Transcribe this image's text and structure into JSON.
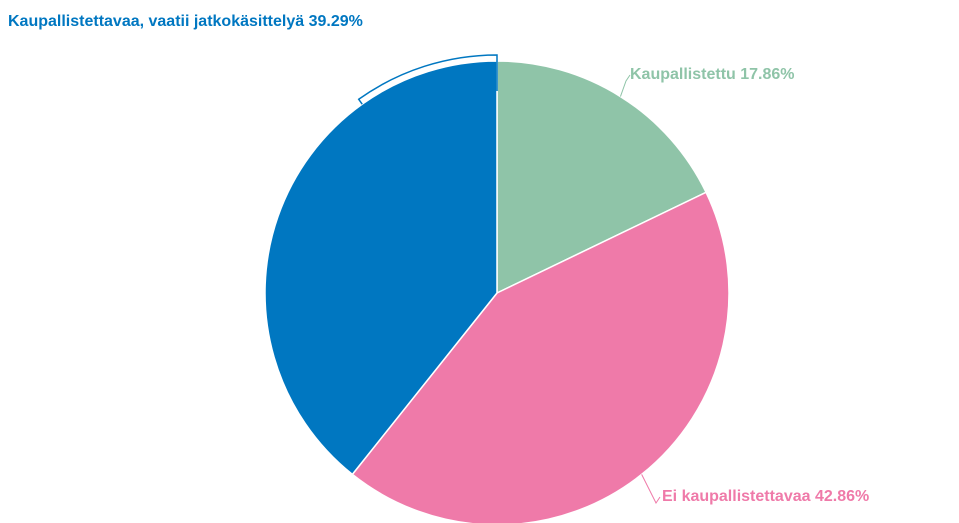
{
  "chart_data": {
    "type": "pie",
    "categories": [
      "Kaupallistettu",
      "Ei kaupallistettavaa",
      "Kaupallistettavaa, vaatii jatkokäsittelyä"
    ],
    "values": [
      17.86,
      42.86,
      39.29
    ],
    "value_labels": [
      "17.86%",
      "42.86%",
      "39.29%"
    ],
    "colors": [
      "#8fc4a8",
      "#ef7aa9",
      "#0077c1"
    ]
  }
}
